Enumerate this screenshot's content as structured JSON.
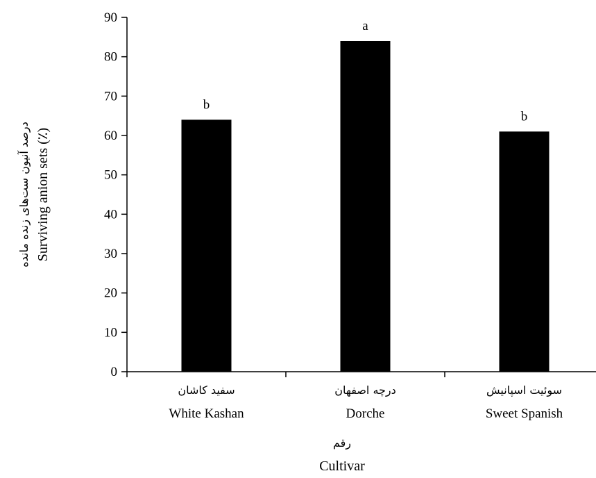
{
  "chart_data": {
    "type": "bar",
    "categories": [
      "White Kashan",
      "Dorche",
      "Sweet Spanish"
    ],
    "categories_fa": [
      "سفید کاشان",
      "درچه اصفهان",
      "سوئیت اسپانیش"
    ],
    "values": [
      64,
      84,
      61
    ],
    "letters": [
      "b",
      "a",
      "b"
    ],
    "ylim": [
      0,
      90
    ],
    "yticks": [
      0,
      10,
      20,
      30,
      40,
      50,
      60,
      70,
      80,
      90
    ],
    "xlabel": "Cultivar",
    "xlabel_fa": "رقم",
    "ylabel": "Surviving anion sets (٪)",
    "ylabel_fa": "درصد آنیون ست‌های زنده مانده",
    "bar_color": "#000000",
    "grid": false,
    "legend": "none"
  }
}
